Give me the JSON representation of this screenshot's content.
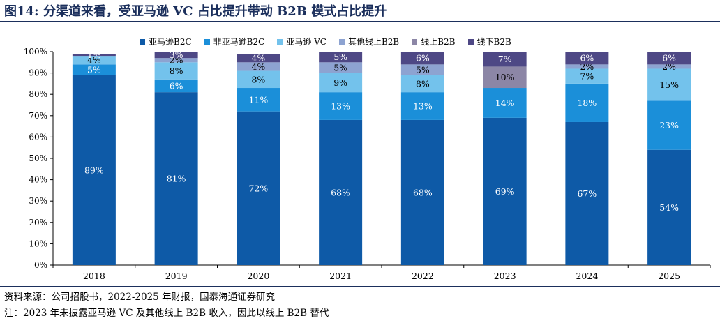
{
  "figure": {
    "title": "图14:  分渠道来看，受亚马逊 VC 占比提升带动 B2B 模式占比提升",
    "source": "资料来源：公司招股书，2022-2025 年财报，国泰海通证券研究",
    "note": "注：2023 年未披露亚马逊 VC 及其他线上 B2B 收入，因此以线上 B2B 替代"
  },
  "chart_data": {
    "type": "bar",
    "stacked": true,
    "categories": [
      "2018",
      "2019",
      "2020",
      "2021",
      "2022",
      "2023",
      "2024",
      "2025"
    ],
    "ylim": [
      0,
      100
    ],
    "yticks": [
      "0%",
      "10%",
      "20%",
      "30%",
      "40%",
      "50%",
      "60%",
      "70%",
      "80%",
      "90%",
      "100%"
    ],
    "legend_position": "top",
    "grid": false,
    "series": [
      {
        "name": "亚马逊B2C",
        "color": "#0e5aa7",
        "values": [
          89,
          81,
          72,
          68,
          68,
          69,
          67,
          54
        ],
        "labels": [
          "89%",
          "81%",
          "72%",
          "68%",
          "68%",
          "69%",
          "67%",
          "54%"
        ]
      },
      {
        "name": "非亚马逊B2C",
        "color": "#1b8fd9",
        "values": [
          5,
          6,
          11,
          13,
          13,
          14,
          18,
          23
        ],
        "labels": [
          "5%",
          "6%",
          "11%",
          "13%",
          "13%",
          "14%",
          "18%",
          "23%"
        ]
      },
      {
        "name": "亚马逊 VC",
        "color": "#73c2ec",
        "values": [
          4,
          8,
          8,
          9,
          8,
          0,
          7,
          15
        ],
        "labels": [
          "4%",
          "8%",
          "8%",
          "9%",
          "8%",
          "",
          "7%",
          "15%"
        ]
      },
      {
        "name": "其他线上B2B",
        "color": "#8da3d1",
        "values": [
          0,
          2,
          4,
          5,
          5,
          0,
          2,
          2
        ],
        "labels": [
          "",
          "2%",
          "4%",
          "5%",
          "5%",
          "",
          "2%",
          "2%"
        ]
      },
      {
        "name": "线上B2B",
        "color": "#8c86a6",
        "values": [
          0,
          0,
          0,
          0,
          0,
          10,
          0,
          0
        ],
        "labels": [
          "",
          "",
          "",
          "",
          "",
          "10%",
          "",
          ""
        ]
      },
      {
        "name": "线下B2B",
        "color": "#4e4885",
        "values": [
          1,
          3,
          4,
          5,
          6,
          7,
          6,
          6
        ],
        "labels": [
          "1%",
          "3%",
          "4%",
          "5%",
          "6%",
          "7%",
          "6%",
          "6%"
        ]
      }
    ]
  }
}
